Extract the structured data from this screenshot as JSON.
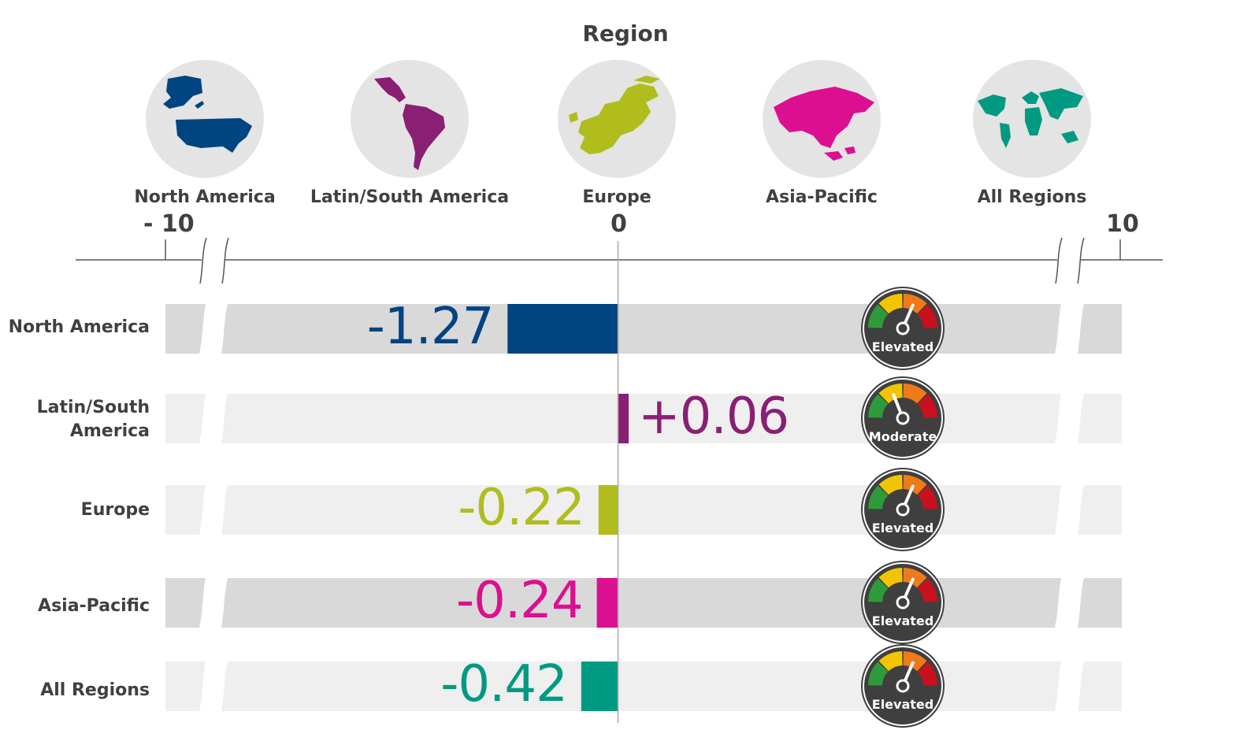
{
  "chart_data": {
    "type": "bar",
    "title": "Region",
    "categories": [
      "North America",
      "Latin/South America",
      "Europe",
      "Asia-Pacific",
      "All Regions"
    ],
    "values": [
      -1.27,
      0.06,
      -0.22,
      -0.24,
      -0.42
    ],
    "value_labels": [
      "-1.27",
      "+0.06",
      "-0.22",
      "-0.24",
      "-0.42"
    ],
    "row_labels": [
      "North America",
      "Latin/South\nAmerica",
      "Europe",
      "Asia-Pacific",
      "All Regions"
    ],
    "colors": [
      "#004481",
      "#8a1f73",
      "#b0bd1c",
      "#dc0f90",
      "#009a82"
    ],
    "gauge_status": [
      "Elevated",
      "Moderate",
      "Elevated",
      "Elevated",
      "Elevated"
    ],
    "xlim": [
      -10,
      10
    ],
    "axis_tick_labels": [
      "- 10",
      "0",
      "10"
    ],
    "axis_break": true
  },
  "region_icons": [
    {
      "label": "North America",
      "icon": "north-america-map-icon",
      "color": "#004481"
    },
    {
      "label": "Latin/South America",
      "icon": "south-america-map-icon",
      "color": "#8a1f73"
    },
    {
      "label": "Europe",
      "icon": "europe-map-icon",
      "color": "#b0bd1c"
    },
    {
      "label": "Asia-Pacific",
      "icon": "asia-pacific-map-icon",
      "color": "#dc0f90"
    },
    {
      "label": "All Regions",
      "icon": "world-map-icon",
      "color": "#009a82"
    }
  ],
  "gauge_colors": {
    "green": "#2e9b3a",
    "yellow": "#f2c500",
    "orange": "#ef7a1a",
    "red": "#c8101f",
    "dial": "#3f3f3f"
  }
}
